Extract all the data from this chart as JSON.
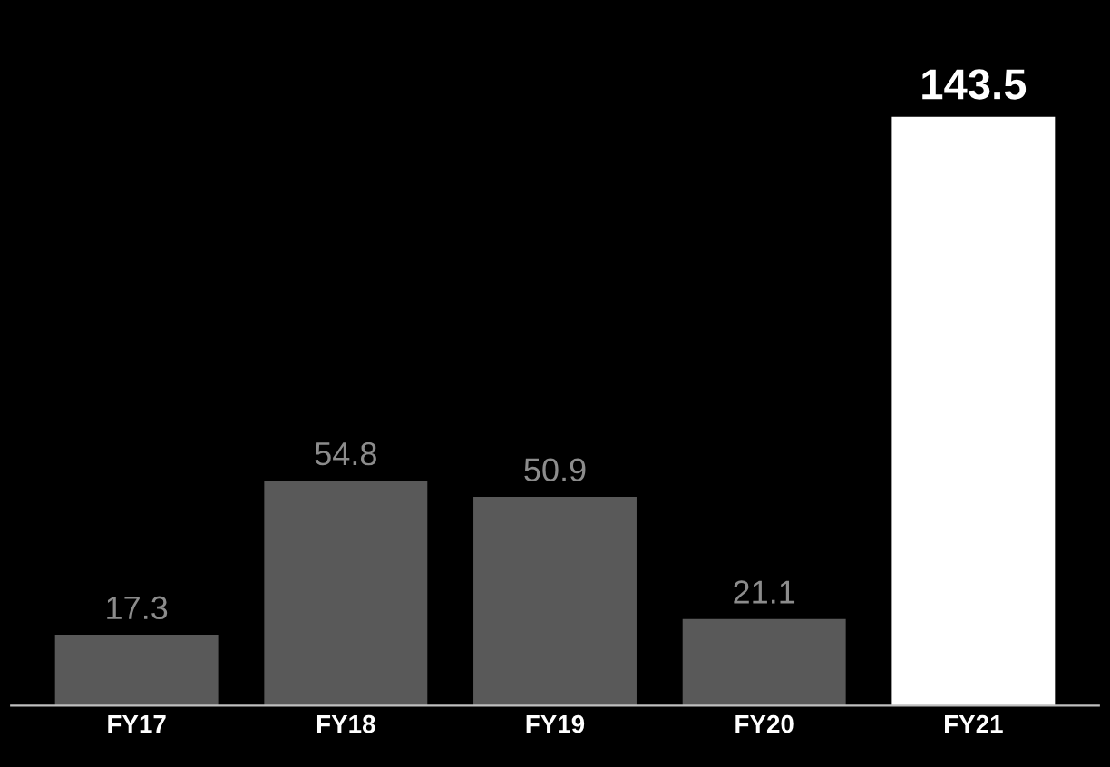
{
  "chart_data": {
    "type": "bar",
    "categories": [
      "FY17",
      "FY18",
      "FY19",
      "FY20",
      "FY21"
    ],
    "values": [
      17.3,
      54.8,
      50.9,
      21.1,
      143.5
    ],
    "colors": [
      "#595959",
      "#595959",
      "#595959",
      "#595959",
      "#ffffff"
    ],
    "data_labels": true,
    "grid": false,
    "legend": false,
    "tick_labels": "x"
  }
}
